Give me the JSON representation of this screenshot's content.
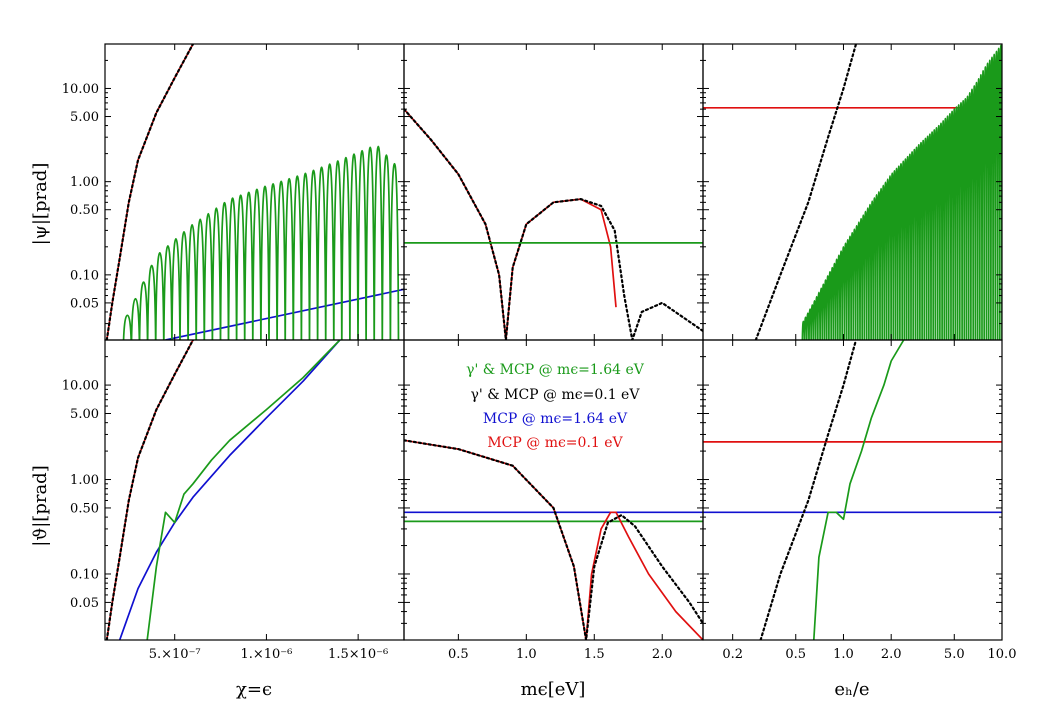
{
  "chart_data": {
    "type": "line",
    "layout": "2 rows x 3 columns, shared y axes per row (log scale), shared x axes per column",
    "rows": [
      {
        "ylabel": "|ψ|[prad]",
        "yscale": "log",
        "ylim": [
          0.02,
          30
        ]
      },
      {
        "ylabel": "|ϑ|[prad]",
        "yscale": "log",
        "ylim": [
          0.02,
          30
        ]
      }
    ],
    "yticks": {
      "values": [
        0.05,
        0.1,
        0.5,
        1.0,
        5.0,
        10.0
      ],
      "labels": [
        "0.05",
        "0.10",
        "0.50",
        "1.00",
        "5.00",
        "10.00"
      ]
    },
    "columns": [
      {
        "xlabel": "χ=ϵ",
        "xscale": "linear",
        "xlim": [
          1.2e-07,
          1.75e-06
        ],
        "xticks": {
          "values": [
            5e-07,
            1e-06,
            1.5e-06
          ],
          "labels": [
            "5.×10⁻⁷",
            "1.×10⁻⁶",
            "1.5×10⁻⁶"
          ]
        }
      },
      {
        "xlabel": "mϵ[eV]",
        "xscale": "linear",
        "xlim": [
          0.1,
          2.3
        ],
        "xticks": {
          "values": [
            0.5,
            1.0,
            1.5,
            2.0
          ],
          "labels": [
            "0.5",
            "1.0",
            "1.5",
            "2.0"
          ]
        }
      },
      {
        "xlabel": "eₕ/e",
        "xscale": "log",
        "xlim": [
          0.13,
          10.0
        ],
        "xticks": {
          "values": [
            0.2,
            0.5,
            1.0,
            2.0,
            5.0,
            10.0
          ],
          "labels": [
            "0.2",
            "0.5",
            "1.0",
            "2.0",
            "5.0",
            "10.0"
          ]
        }
      }
    ],
    "legend": {
      "placement": "inside bottom-middle panel, top",
      "entries": [
        {
          "label": "γ' & MCP @ mϵ=1.64 eV",
          "color": "#1a9a1a",
          "style": "solid"
        },
        {
          "label": "γ' & MCP @ mϵ=0.1 eV",
          "color": "#000000",
          "style": "dotted"
        },
        {
          "label": "MCP @ mϵ=1.64 eV",
          "color": "#1010d0",
          "style": "solid"
        },
        {
          "label": "MCP @ mϵ=0.1 eV",
          "color": "#e01010",
          "style": "solid"
        }
      ]
    },
    "colors": {
      "green": "#1a9a1a",
      "black": "#000000",
      "blue": "#1010d0",
      "red": "#e01010"
    },
    "panels": [
      {
        "row": 0,
        "col": 0,
        "series": [
          {
            "legend": 3,
            "x": [
              1.3e-07,
              1.6e-07,
              2e-07,
              2.5e-07,
              3e-07,
              4e-07,
              5e-07,
              6e-07
            ],
            "y": [
              0.02,
              0.05,
              0.15,
              0.6,
              1.7,
              5.5,
              13,
              30
            ]
          },
          {
            "legend": 1,
            "x": [
              1.3e-07,
              1.6e-07,
              2e-07,
              2.5e-07,
              3e-07,
              4e-07,
              5e-07,
              6e-07
            ],
            "y": [
              0.02,
              0.05,
              0.15,
              0.6,
              1.7,
              5.5,
              13,
              30
            ]
          },
          {
            "legend": 2,
            "x": [
              4.5e-07,
              1.75e-06
            ],
            "y": [
              0.02,
              0.07
            ]
          },
          {
            "legend": 0,
            "envelope": {
              "x": [
                2.2e-07,
                4e-07,
                6e-07,
                8e-07,
                1e-06,
                1.2e-06,
                1.4e-06,
                1.6e-06,
                1.72e-06
              ],
              "y": [
                0.03,
                0.16,
                0.35,
                0.65,
                0.9,
                1.2,
                1.7,
                2.5,
                1.4
              ]
            }
          }
        ]
      },
      {
        "row": 0,
        "col": 1,
        "series": [
          {
            "legend": 3,
            "x": [
              0.1,
              0.3,
              0.5,
              0.7,
              0.8,
              0.85,
              0.9,
              1.0,
              1.2,
              1.4,
              1.55,
              1.62,
              1.66
            ],
            "y": [
              6,
              2.8,
              1.2,
              0.35,
              0.1,
              0.02,
              0.12,
              0.35,
              0.6,
              0.65,
              0.5,
              0.2,
              0.045
            ]
          },
          {
            "legend": 1,
            "x": [
              0.1,
              0.3,
              0.5,
              0.7,
              0.8,
              0.85,
              0.9,
              1.0,
              1.2,
              1.4,
              1.55,
              1.65,
              1.72,
              1.78,
              1.85,
              2.0,
              2.3
            ],
            "y": [
              6,
              2.8,
              1.2,
              0.35,
              0.1,
              0.02,
              0.12,
              0.35,
              0.6,
              0.65,
              0.55,
              0.3,
              0.06,
              0.02,
              0.04,
              0.05,
              0.025
            ]
          },
          {
            "legend": 0,
            "x": [
              0.1,
              2.3
            ],
            "y": [
              0.22,
              0.22
            ]
          }
        ]
      },
      {
        "row": 0,
        "col": 2,
        "series": [
          {
            "legend": 3,
            "x": [
              0.13,
              10.0
            ],
            "y": [
              6.2,
              6.2
            ]
          },
          {
            "legend": 1,
            "x": [
              0.28,
              0.4,
              0.6,
              0.8,
              1.0,
              1.2
            ],
            "y": [
              0.02,
              0.1,
              0.6,
              3,
              10,
              30
            ]
          },
          {
            "legend": 0,
            "envelope": {
              "x": [
                0.55,
                1.0,
                1.5,
                2.0,
                3.0,
                4.0,
                5.0,
                6.0,
                7.0,
                8.0,
                10.0
              ],
              "y": [
                0.03,
                0.2,
                0.6,
                1.2,
                2.5,
                4,
                6,
                8,
                12,
                18,
                30
              ]
            }
          }
        ]
      },
      {
        "row": 1,
        "col": 0,
        "series": [
          {
            "legend": 3,
            "x": [
              1.3e-07,
              1.6e-07,
              2e-07,
              2.5e-07,
              3e-07,
              4e-07,
              5e-07,
              6e-07
            ],
            "y": [
              0.02,
              0.05,
              0.15,
              0.6,
              1.7,
              5.5,
              13,
              30
            ]
          },
          {
            "legend": 1,
            "x": [
              1.3e-07,
              1.6e-07,
              2e-07,
              2.5e-07,
              3e-07,
              4e-07,
              5e-07,
              6e-07
            ],
            "y": [
              0.02,
              0.05,
              0.15,
              0.6,
              1.7,
              5.5,
              13,
              30
            ]
          },
          {
            "legend": 2,
            "x": [
              2e-07,
              3e-07,
              4e-07,
              5e-07,
              6e-07,
              8e-07,
              1e-06,
              1.2e-06,
              1.4e-06
            ],
            "y": [
              0.02,
              0.07,
              0.17,
              0.35,
              0.65,
              1.8,
              4.5,
              11,
              30
            ]
          },
          {
            "legend": 0,
            "x": [
              3.5e-07,
              4e-07,
              4.5e-07,
              5e-07,
              5.5e-07,
              6e-07,
              7e-07,
              8e-07,
              1e-06,
              1.2e-06,
              1.4e-06
            ],
            "y": [
              0.02,
              0.12,
              0.45,
              0.35,
              0.7,
              0.9,
              1.6,
              2.6,
              5.5,
              12,
              30
            ]
          }
        ]
      },
      {
        "row": 1,
        "col": 1,
        "series": [
          {
            "legend": 2,
            "x": [
              0.1,
              2.3
            ],
            "y": [
              0.45,
              0.45
            ]
          },
          {
            "legend": 0,
            "x": [
              0.1,
              2.3
            ],
            "y": [
              0.36,
              0.36
            ]
          },
          {
            "legend": 3,
            "x": [
              0.1,
              0.5,
              0.9,
              1.2,
              1.35,
              1.44,
              1.48,
              1.55,
              1.62,
              1.66,
              1.75,
              1.9,
              2.1,
              2.3
            ],
            "y": [
              2.6,
              2.1,
              1.4,
              0.5,
              0.12,
              0.02,
              0.1,
              0.3,
              0.45,
              0.45,
              0.25,
              0.1,
              0.04,
              0.02
            ]
          },
          {
            "legend": 1,
            "x": [
              0.1,
              0.5,
              0.9,
              1.2,
              1.35,
              1.44,
              1.5,
              1.6,
              1.7,
              1.8,
              2.0,
              2.2,
              2.3
            ],
            "y": [
              2.6,
              2.1,
              1.4,
              0.5,
              0.12,
              0.02,
              0.12,
              0.35,
              0.42,
              0.32,
              0.12,
              0.05,
              0.03
            ]
          }
        ]
      },
      {
        "row": 1,
        "col": 2,
        "series": [
          {
            "legend": 3,
            "x": [
              0.13,
              10.0
            ],
            "y": [
              2.5,
              2.5
            ]
          },
          {
            "legend": 2,
            "x": [
              0.13,
              10.0
            ],
            "y": [
              0.45,
              0.45
            ]
          },
          {
            "legend": 1,
            "x": [
              0.3,
              0.4,
              0.6,
              0.8,
              1.0,
              1.2
            ],
            "y": [
              0.02,
              0.1,
              0.6,
              3,
              10,
              30
            ]
          },
          {
            "legend": 0,
            "x": [
              0.65,
              0.7,
              0.8,
              0.9,
              1.0,
              1.1,
              1.3,
              1.5,
              1.8,
              2.0,
              2.4
            ],
            "y": [
              0.02,
              0.15,
              0.45,
              0.45,
              0.38,
              0.9,
              2.0,
              4.5,
              10,
              18,
              30
            ]
          }
        ]
      }
    ]
  }
}
